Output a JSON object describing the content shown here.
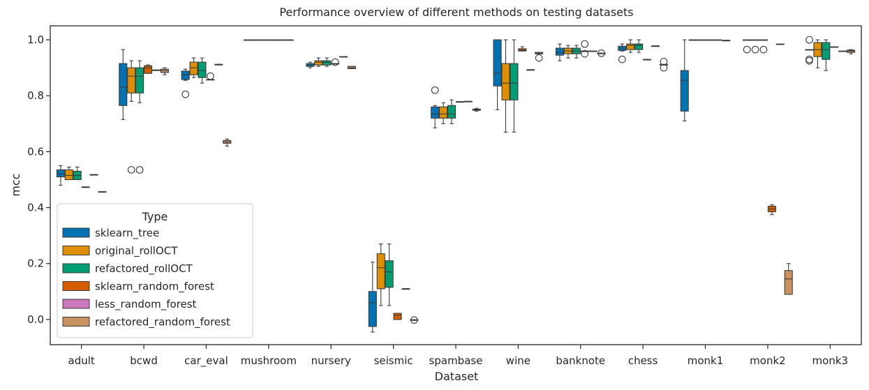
{
  "chart_data": {
    "type": "box",
    "title": "Performance overview of different methods on testing datasets",
    "xlabel": "Dataset",
    "ylabel": "mcc",
    "ylim": [
      -0.09,
      1.05
    ],
    "yticks": [
      0.0,
      0.2,
      0.4,
      0.6,
      0.8,
      1.0
    ],
    "ytick_labels": [
      "0.0",
      "0.2",
      "0.4",
      "0.6",
      "0.8",
      "1.0"
    ],
    "categories": [
      "adult",
      "bcwd",
      "car_eval",
      "mushroom",
      "nursery",
      "seismic",
      "spambase",
      "wine",
      "banknote",
      "chess",
      "monk1",
      "monk2",
      "monk3"
    ],
    "legend": {
      "title": "Type",
      "placement": "lower-left"
    },
    "series": [
      {
        "name": "sklearn_tree",
        "color": "#0173b2",
        "boxes": [
          {
            "min": 0.48,
            "q1": 0.51,
            "median": 0.52,
            "q3": 0.535,
            "max": 0.55,
            "outliers": []
          },
          {
            "min": 0.715,
            "q1": 0.765,
            "median": 0.83,
            "q3": 0.915,
            "max": 0.965,
            "outliers": []
          },
          {
            "min": 0.855,
            "q1": 0.858,
            "median": 0.875,
            "q3": 0.888,
            "max": 0.895,
            "outliers": [
              0.805
            ]
          },
          {
            "min": 1.0,
            "q1": 1.0,
            "median": 1.0,
            "q3": 1.0,
            "max": 1.0,
            "outliers": []
          },
          {
            "min": 0.9,
            "q1": 0.905,
            "median": 0.91,
            "q3": 0.915,
            "max": 0.92,
            "outliers": []
          },
          {
            "min": -0.045,
            "q1": -0.025,
            "median": 0.06,
            "q3": 0.1,
            "max": 0.205,
            "outliers": []
          },
          {
            "min": 0.685,
            "q1": 0.72,
            "median": 0.735,
            "q3": 0.76,
            "max": 0.765,
            "outliers": [
              0.82
            ]
          },
          {
            "min": 0.75,
            "q1": 0.835,
            "median": 0.88,
            "q3": 1.0,
            "max": 1.0,
            "outliers": []
          },
          {
            "min": 0.925,
            "q1": 0.945,
            "median": 0.955,
            "q3": 0.97,
            "max": 0.985,
            "outliers": []
          },
          {
            "min": 0.96,
            "q1": 0.962,
            "median": 0.97,
            "q3": 0.977,
            "max": 0.985,
            "outliers": [
              0.93
            ]
          },
          {
            "min": 0.71,
            "q1": 0.745,
            "median": 0.855,
            "q3": 0.89,
            "max": 1.0,
            "outliers": []
          },
          {
            "min": 1.0,
            "q1": 1.0,
            "median": 1.0,
            "q3": 1.0,
            "max": 1.0,
            "outliers": [
              0.965
            ]
          },
          {
            "min": 0.965,
            "q1": 0.965,
            "median": 0.965,
            "q3": 0.965,
            "max": 0.965,
            "outliers": [
              1.0,
              0.93,
              0.925
            ]
          }
        ]
      },
      {
        "name": "original_rollOCT",
        "color": "#de8f05",
        "boxes": [
          {
            "min": 0.5,
            "q1": 0.5,
            "median": 0.515,
            "q3": 0.535,
            "max": 0.545,
            "outliers": []
          },
          {
            "min": 0.78,
            "q1": 0.81,
            "median": 0.87,
            "q3": 0.9,
            "max": 0.925,
            "outliers": [
              0.535
            ]
          },
          {
            "min": 0.865,
            "q1": 0.875,
            "median": 0.9,
            "q3": 0.92,
            "max": 0.935,
            "outliers": []
          },
          {
            "min": 1.0,
            "q1": 1.0,
            "median": 1.0,
            "q3": 1.0,
            "max": 1.0,
            "outliers": []
          },
          {
            "min": 0.905,
            "q1": 0.91,
            "median": 0.92,
            "q3": 0.925,
            "max": 0.935,
            "outliers": []
          },
          {
            "min": 0.05,
            "q1": 0.11,
            "median": 0.185,
            "q3": 0.235,
            "max": 0.27,
            "outliers": []
          },
          {
            "min": 0.7,
            "q1": 0.72,
            "median": 0.735,
            "q3": 0.76,
            "max": 0.775,
            "outliers": []
          },
          {
            "min": 0.67,
            "q1": 0.785,
            "median": 0.845,
            "q3": 0.915,
            "max": 1.0,
            "outliers": []
          },
          {
            "min": 0.935,
            "q1": 0.95,
            "median": 0.96,
            "q3": 0.97,
            "max": 0.98,
            "outliers": []
          },
          {
            "min": 0.955,
            "q1": 0.965,
            "median": 0.98,
            "q3": 0.985,
            "max": 1.0,
            "outliers": []
          },
          {
            "min": 1.0,
            "q1": 1.0,
            "median": 1.0,
            "q3": 1.0,
            "max": 1.0,
            "outliers": []
          },
          {
            "min": 1.0,
            "q1": 1.0,
            "median": 1.0,
            "q3": 1.0,
            "max": 1.0,
            "outliers": [
              0.965
            ]
          },
          {
            "min": 0.9,
            "q1": 0.94,
            "median": 0.965,
            "q3": 0.99,
            "max": 1.0,
            "outliers": []
          }
        ]
      },
      {
        "name": "refactored_rollOCT",
        "color": "#029e73",
        "boxes": [
          {
            "min": 0.5,
            "q1": 0.5,
            "median": 0.515,
            "q3": 0.53,
            "max": 0.545,
            "outliers": []
          },
          {
            "min": 0.775,
            "q1": 0.81,
            "median": 0.87,
            "q3": 0.9,
            "max": 0.925,
            "outliers": [
              0.535
            ]
          },
          {
            "min": 0.845,
            "q1": 0.865,
            "median": 0.89,
            "q3": 0.92,
            "max": 0.935,
            "outliers": []
          },
          {
            "min": 1.0,
            "q1": 1.0,
            "median": 1.0,
            "q3": 1.0,
            "max": 1.0,
            "outliers": []
          },
          {
            "min": 0.905,
            "q1": 0.91,
            "median": 0.92,
            "q3": 0.925,
            "max": 0.935,
            "outliers": []
          },
          {
            "min": 0.05,
            "q1": 0.115,
            "median": 0.17,
            "q3": 0.21,
            "max": 0.27,
            "outliers": []
          },
          {
            "min": 0.7,
            "q1": 0.72,
            "median": 0.735,
            "q3": 0.765,
            "max": 0.785,
            "outliers": []
          },
          {
            "min": 0.67,
            "q1": 0.785,
            "median": 0.845,
            "q3": 0.915,
            "max": 1.0,
            "outliers": []
          },
          {
            "min": 0.935,
            "q1": 0.95,
            "median": 0.96,
            "q3": 0.97,
            "max": 0.98,
            "outliers": []
          },
          {
            "min": 0.955,
            "q1": 0.965,
            "median": 0.98,
            "q3": 0.985,
            "max": 1.0,
            "outliers": []
          },
          {
            "min": 1.0,
            "q1": 1.0,
            "median": 1.0,
            "q3": 1.0,
            "max": 1.0,
            "outliers": []
          },
          {
            "min": 1.0,
            "q1": 1.0,
            "median": 1.0,
            "q3": 1.0,
            "max": 1.0,
            "outliers": [
              0.965
            ]
          },
          {
            "min": 0.89,
            "q1": 0.93,
            "median": 0.965,
            "q3": 0.99,
            "max": 1.0,
            "outliers": []
          }
        ]
      },
      {
        "name": "sklearn_random_forest",
        "color": "#d55e00",
        "boxes": [
          {
            "min": 0.472,
            "q1": 0.472,
            "median": 0.473,
            "q3": 0.474,
            "max": 0.474,
            "outliers": []
          },
          {
            "min": 0.88,
            "q1": 0.88,
            "median": 0.9,
            "q3": 0.907,
            "max": 0.91,
            "outliers": []
          },
          {
            "min": 0.857,
            "q1": 0.857,
            "median": 0.858,
            "q3": 0.858,
            "max": 0.858,
            "outliers": [
              0.87
            ]
          },
          {
            "min": 1.0,
            "q1": 1.0,
            "median": 1.0,
            "q3": 1.0,
            "max": 1.0,
            "outliers": []
          },
          {
            "min": 0.915,
            "q1": 0.915,
            "median": 0.915,
            "q3": 0.915,
            "max": 0.915,
            "outliers": [
              0.92
            ]
          },
          {
            "min": 0.0,
            "q1": 0.0,
            "median": 0.015,
            "q3": 0.022,
            "max": 0.022,
            "outliers": []
          },
          {
            "min": 0.778,
            "q1": 0.778,
            "median": 0.778,
            "q3": 0.779,
            "max": 0.779,
            "outliers": []
          },
          {
            "min": 0.96,
            "q1": 0.96,
            "median": 0.963,
            "q3": 0.968,
            "max": 0.975,
            "outliers": []
          },
          {
            "min": 0.958,
            "q1": 0.958,
            "median": 0.959,
            "q3": 0.96,
            "max": 0.96,
            "outliers": [
              0.95,
              0.985
            ]
          },
          {
            "min": 0.928,
            "q1": 0.928,
            "median": 0.929,
            "q3": 0.93,
            "max": 0.93,
            "outliers": []
          },
          {
            "min": 1.0,
            "q1": 1.0,
            "median": 1.0,
            "q3": 1.0,
            "max": 1.0,
            "outliers": []
          },
          {
            "min": 0.375,
            "q1": 0.385,
            "median": 0.395,
            "q3": 0.405,
            "max": 0.41,
            "outliers": []
          },
          {
            "min": 0.975,
            "q1": 0.975,
            "median": 0.975,
            "q3": 0.975,
            "max": 0.975,
            "outliers": []
          }
        ]
      },
      {
        "name": "less_random_forest",
        "color": "#cc78bc",
        "boxes": [
          {
            "min": 0.518,
            "q1": 0.518,
            "median": 0.518,
            "q3": 0.518,
            "max": 0.518,
            "outliers": []
          },
          {
            "min": 0.892,
            "q1": 0.892,
            "median": 0.892,
            "q3": 0.892,
            "max": 0.892,
            "outliers": []
          },
          {
            "min": 0.912,
            "q1": 0.912,
            "median": 0.912,
            "q3": 0.912,
            "max": 0.912,
            "outliers": []
          },
          {
            "min": 1.0,
            "q1": 1.0,
            "median": 1.0,
            "q3": 1.0,
            "max": 1.0,
            "outliers": []
          },
          {
            "min": 0.94,
            "q1": 0.94,
            "median": 0.94,
            "q3": 0.94,
            "max": 0.94,
            "outliers": []
          },
          {
            "min": 0.11,
            "q1": 0.11,
            "median": 0.11,
            "q3": 0.11,
            "max": 0.11,
            "outliers": []
          },
          {
            "min": 0.78,
            "q1": 0.78,
            "median": 0.78,
            "q3": 0.78,
            "max": 0.78,
            "outliers": []
          },
          {
            "min": 0.893,
            "q1": 0.893,
            "median": 0.893,
            "q3": 0.893,
            "max": 0.893,
            "outliers": []
          },
          {
            "min": 0.96,
            "q1": 0.96,
            "median": 0.96,
            "q3": 0.96,
            "max": 0.96,
            "outliers": []
          },
          {
            "min": 0.978,
            "q1": 0.978,
            "median": 0.978,
            "q3": 0.978,
            "max": 0.978,
            "outliers": []
          },
          {
            "min": 1.0,
            "q1": 1.0,
            "median": 1.0,
            "q3": 1.0,
            "max": 1.0,
            "outliers": []
          },
          {
            "min": 0.985,
            "q1": 0.985,
            "median": 0.985,
            "q3": 0.985,
            "max": 0.985,
            "outliers": []
          },
          {
            "min": 0.96,
            "q1": 0.96,
            "median": 0.96,
            "q3": 0.96,
            "max": 0.96,
            "outliers": []
          }
        ]
      },
      {
        "name": "refactored_random_forest",
        "color": "#ca9161",
        "boxes": [
          {
            "min": 0.455,
            "q1": 0.455,
            "median": 0.456,
            "q3": 0.457,
            "max": 0.457,
            "outliers": []
          },
          {
            "min": 0.875,
            "q1": 0.883,
            "median": 0.89,
            "q3": 0.895,
            "max": 0.9,
            "outliers": []
          },
          {
            "min": 0.62,
            "q1": 0.63,
            "median": 0.635,
            "q3": 0.64,
            "max": 0.645,
            "outliers": []
          },
          {
            "min": 1.0,
            "q1": 1.0,
            "median": 1.0,
            "q3": 1.0,
            "max": 1.0,
            "outliers": []
          },
          {
            "min": 0.897,
            "q1": 0.897,
            "median": 0.9,
            "q3": 0.905,
            "max": 0.905,
            "outliers": []
          },
          {
            "min": -0.003,
            "q1": -0.003,
            "median": -0.002,
            "q3": -0.001,
            "max": -0.001,
            "outliers": [
              -0.002
            ]
          },
          {
            "min": 0.745,
            "q1": 0.748,
            "median": 0.75,
            "q3": 0.752,
            "max": 0.755,
            "outliers": []
          },
          {
            "min": 0.95,
            "q1": 0.95,
            "median": 0.952,
            "q3": 0.955,
            "max": 0.955,
            "outliers": [
              0.935
            ]
          },
          {
            "min": 0.952,
            "q1": 0.952,
            "median": 0.952,
            "q3": 0.952,
            "max": 0.952,
            "outliers": [
              0.952
            ]
          },
          {
            "min": 0.91,
            "q1": 0.91,
            "median": 0.91,
            "q3": 0.912,
            "max": 0.912,
            "outliers": [
              0.922,
              0.9
            ]
          },
          {
            "min": 0.998,
            "q1": 0.998,
            "median": 0.998,
            "q3": 0.998,
            "max": 0.998,
            "outliers": []
          },
          {
            "min": 0.09,
            "q1": 0.09,
            "median": 0.145,
            "q3": 0.175,
            "max": 0.2,
            "outliers": []
          },
          {
            "min": 0.95,
            "q1": 0.955,
            "median": 0.96,
            "q3": 0.963,
            "max": 0.965,
            "outliers": []
          }
        ]
      }
    ]
  }
}
